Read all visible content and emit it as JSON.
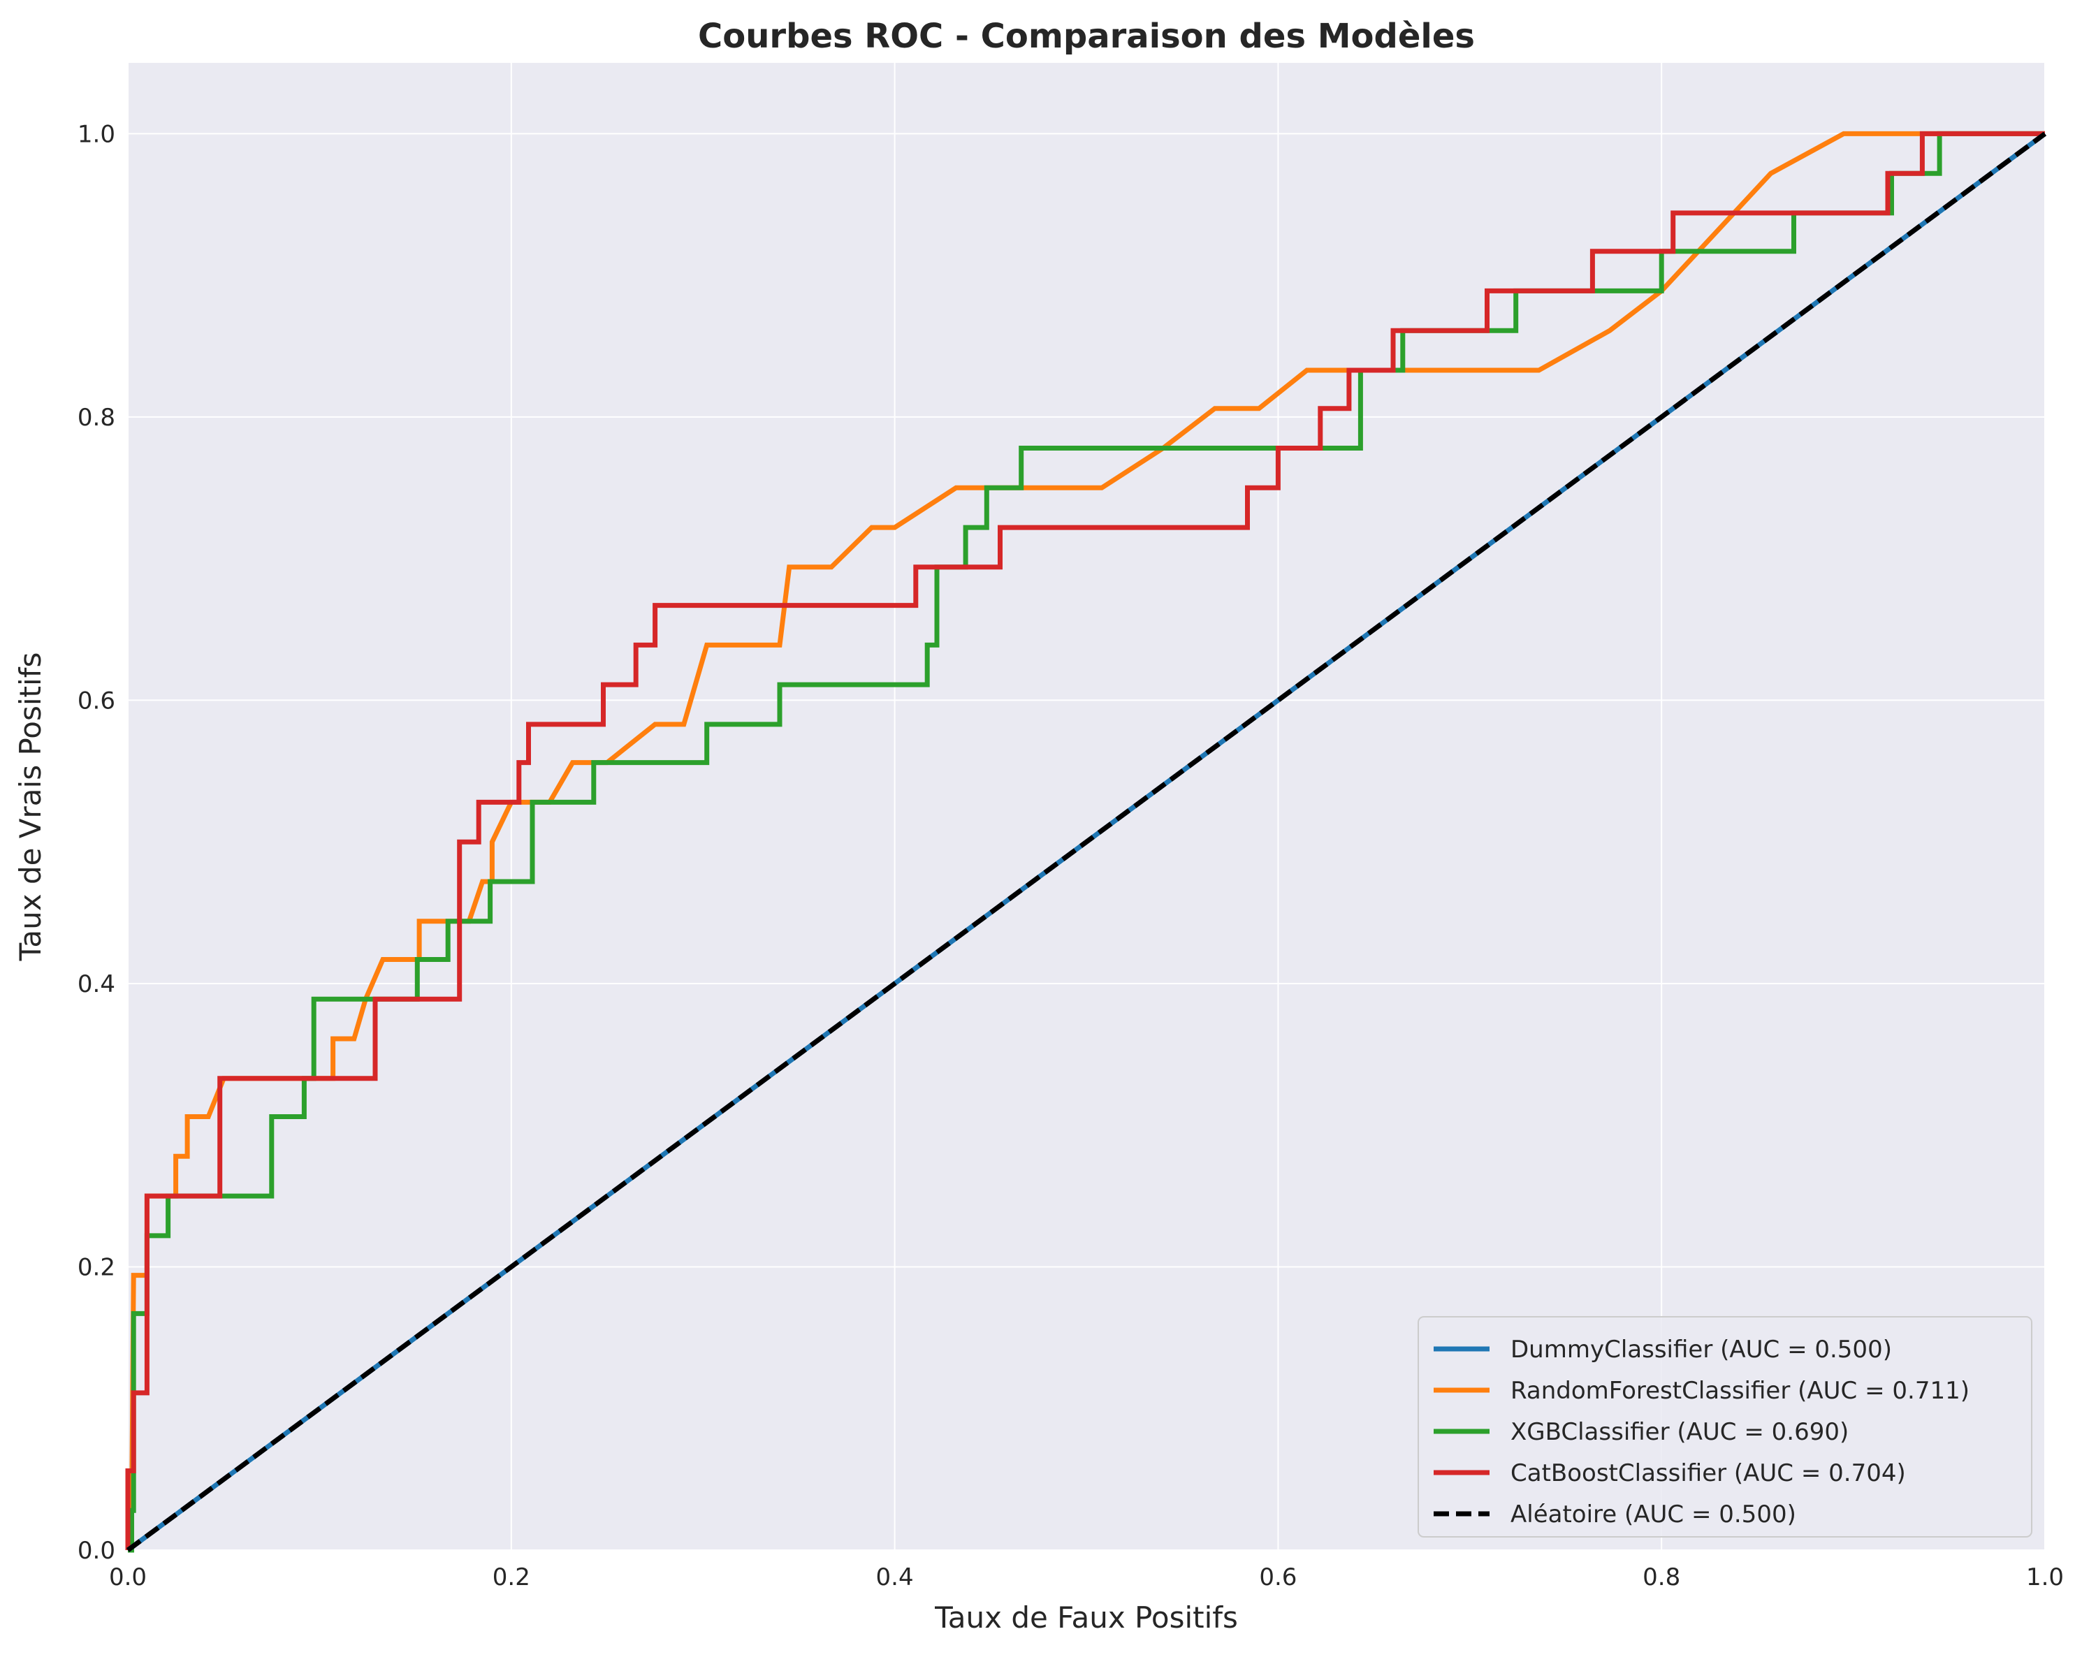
{
  "chart_data": {
    "type": "line",
    "title": "Courbes ROC - Comparaison des Modèles",
    "xlabel": "Taux de Faux Positifs",
    "ylabel": "Taux de Vrais Positifs",
    "xlim": [
      0.0,
      1.0
    ],
    "ylim": [
      0.0,
      1.05
    ],
    "grid": true,
    "legend_position": "lower-right",
    "x_ticks": [
      "0.0",
      "0.2",
      "0.4",
      "0.6",
      "0.8",
      "1.0"
    ],
    "y_ticks": [
      "0.0",
      "0.2",
      "0.4",
      "0.6",
      "0.8",
      "1.0"
    ],
    "background_color": "#eaeaf2",
    "series": [
      {
        "name": "DummyClassifier (AUC = 0.500)",
        "color": "#1f77b4",
        "dash": "solid",
        "points": [
          [
            0,
            0
          ],
          [
            1,
            1
          ]
        ]
      },
      {
        "name": "RandomForestClassifier (AUC = 0.711)",
        "color": "#ff7f0e",
        "dash": "solid",
        "points": [
          [
            0,
            0
          ],
          [
            0.002,
            0.028
          ],
          [
            0.003,
            0.194
          ],
          [
            0.01,
            0.194
          ],
          [
            0.01,
            0.25
          ],
          [
            0.025,
            0.25
          ],
          [
            0.025,
            0.278
          ],
          [
            0.031,
            0.278
          ],
          [
            0.031,
            0.306
          ],
          [
            0.042,
            0.306
          ],
          [
            0.05,
            0.333
          ],
          [
            0.1,
            0.333
          ],
          [
            0.107,
            0.333
          ],
          [
            0.107,
            0.361
          ],
          [
            0.118,
            0.361
          ],
          [
            0.124,
            0.389
          ],
          [
            0.133,
            0.417
          ],
          [
            0.152,
            0.417
          ],
          [
            0.152,
            0.444
          ],
          [
            0.178,
            0.444
          ],
          [
            0.185,
            0.472
          ],
          [
            0.19,
            0.472
          ],
          [
            0.19,
            0.5
          ],
          [
            0.2,
            0.528
          ],
          [
            0.22,
            0.528
          ],
          [
            0.232,
            0.556
          ],
          [
            0.25,
            0.556
          ],
          [
            0.275,
            0.583
          ],
          [
            0.29,
            0.583
          ],
          [
            0.302,
            0.639
          ],
          [
            0.34,
            0.639
          ],
          [
            0.345,
            0.694
          ],
          [
            0.367,
            0.694
          ],
          [
            0.388,
            0.722
          ],
          [
            0.4,
            0.722
          ],
          [
            0.432,
            0.75
          ],
          [
            0.508,
            0.75
          ],
          [
            0.54,
            0.778
          ],
          [
            0.567,
            0.806
          ],
          [
            0.59,
            0.806
          ],
          [
            0.615,
            0.833
          ],
          [
            0.736,
            0.833
          ],
          [
            0.773,
            0.861
          ],
          [
            0.8,
            0.889
          ],
          [
            0.857,
            0.972
          ],
          [
            0.895,
            1.0
          ],
          [
            1,
            1
          ]
        ]
      },
      {
        "name": "XGBClassifier (AUC = 0.690)",
        "color": "#2ca02c",
        "dash": "solid",
        "points": [
          [
            0,
            0
          ],
          [
            0.002,
            0
          ],
          [
            0.002,
            0.028
          ],
          [
            0.003,
            0.028
          ],
          [
            0.003,
            0.167
          ],
          [
            0.01,
            0.167
          ],
          [
            0.01,
            0.222
          ],
          [
            0.021,
            0.222
          ],
          [
            0.021,
            0.25
          ],
          [
            0.075,
            0.25
          ],
          [
            0.075,
            0.306
          ],
          [
            0.092,
            0.306
          ],
          [
            0.092,
            0.333
          ],
          [
            0.097,
            0.333
          ],
          [
            0.097,
            0.389
          ],
          [
            0.151,
            0.389
          ],
          [
            0.151,
            0.417
          ],
          [
            0.167,
            0.417
          ],
          [
            0.167,
            0.444
          ],
          [
            0.189,
            0.444
          ],
          [
            0.189,
            0.472
          ],
          [
            0.211,
            0.472
          ],
          [
            0.211,
            0.528
          ],
          [
            0.243,
            0.528
          ],
          [
            0.243,
            0.556
          ],
          [
            0.302,
            0.556
          ],
          [
            0.302,
            0.583
          ],
          [
            0.34,
            0.583
          ],
          [
            0.34,
            0.611
          ],
          [
            0.417,
            0.611
          ],
          [
            0.417,
            0.639
          ],
          [
            0.422,
            0.639
          ],
          [
            0.422,
            0.694
          ],
          [
            0.437,
            0.694
          ],
          [
            0.437,
            0.722
          ],
          [
            0.448,
            0.722
          ],
          [
            0.448,
            0.75
          ],
          [
            0.466,
            0.75
          ],
          [
            0.466,
            0.778
          ],
          [
            0.643,
            0.778
          ],
          [
            0.643,
            0.833
          ],
          [
            0.665,
            0.833
          ],
          [
            0.665,
            0.861
          ],
          [
            0.724,
            0.861
          ],
          [
            0.724,
            0.889
          ],
          [
            0.8,
            0.889
          ],
          [
            0.8,
            0.917
          ],
          [
            0.869,
            0.917
          ],
          [
            0.869,
            0.944
          ],
          [
            0.92,
            0.944
          ],
          [
            0.92,
            0.972
          ],
          [
            0.945,
            0.972
          ],
          [
            0.945,
            1.0
          ],
          [
            1,
            1
          ]
        ]
      },
      {
        "name": "CatBoostClassifier (AUC = 0.704)",
        "color": "#d62728",
        "dash": "solid",
        "points": [
          [
            0,
            0
          ],
          [
            0,
            0.056
          ],
          [
            0.003,
            0.056
          ],
          [
            0.003,
            0.111
          ],
          [
            0.01,
            0.111
          ],
          [
            0.01,
            0.25
          ],
          [
            0.048,
            0.25
          ],
          [
            0.048,
            0.333
          ],
          [
            0.129,
            0.333
          ],
          [
            0.129,
            0.389
          ],
          [
            0.173,
            0.389
          ],
          [
            0.173,
            0.5
          ],
          [
            0.183,
            0.5
          ],
          [
            0.183,
            0.528
          ],
          [
            0.204,
            0.528
          ],
          [
            0.204,
            0.556
          ],
          [
            0.209,
            0.556
          ],
          [
            0.209,
            0.583
          ],
          [
            0.248,
            0.583
          ],
          [
            0.248,
            0.611
          ],
          [
            0.265,
            0.611
          ],
          [
            0.265,
            0.639
          ],
          [
            0.275,
            0.639
          ],
          [
            0.275,
            0.667
          ],
          [
            0.411,
            0.667
          ],
          [
            0.411,
            0.694
          ],
          [
            0.455,
            0.694
          ],
          [
            0.455,
            0.722
          ],
          [
            0.584,
            0.722
          ],
          [
            0.584,
            0.75
          ],
          [
            0.6,
            0.75
          ],
          [
            0.6,
            0.778
          ],
          [
            0.622,
            0.778
          ],
          [
            0.622,
            0.806
          ],
          [
            0.637,
            0.806
          ],
          [
            0.637,
            0.833
          ],
          [
            0.66,
            0.833
          ],
          [
            0.66,
            0.861
          ],
          [
            0.709,
            0.861
          ],
          [
            0.709,
            0.889
          ],
          [
            0.764,
            0.889
          ],
          [
            0.764,
            0.917
          ],
          [
            0.806,
            0.917
          ],
          [
            0.806,
            0.944
          ],
          [
            0.918,
            0.944
          ],
          [
            0.918,
            0.972
          ],
          [
            0.936,
            0.972
          ],
          [
            0.936,
            1.0
          ],
          [
            1,
            1
          ]
        ]
      },
      {
        "name": "Aléatoire (AUC = 0.500)",
        "color": "#000000",
        "dash": "dashed",
        "points": [
          [
            0,
            0
          ],
          [
            1,
            1
          ]
        ]
      }
    ]
  }
}
